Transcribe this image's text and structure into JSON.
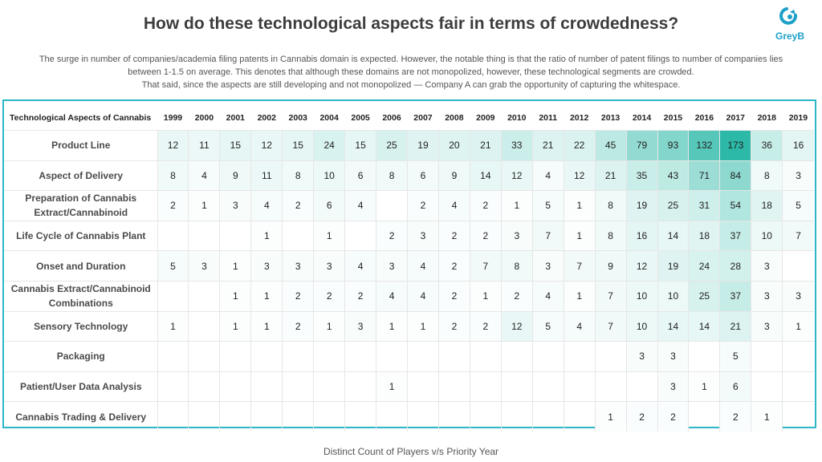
{
  "title": "How do these technological aspects fair in terms of crowdedness?",
  "logo": {
    "text": "GreyB",
    "icon": "greyb-logo-icon",
    "color": "#1ea1c9"
  },
  "subtitle_lines": [
    "The surge in number of companies/academia filing patents in Cannabis domain is expected. However, the notable thing is that the ratio of number of patent filings to number of companies lies",
    "between 1-1.5 on average. This denotes that although these domains are not monopolized, however, these technological segments are crowded.",
    "That said, since the aspects are still developing and not monopolized — Company A can grab the opportunity of capturing the whitespace."
  ],
  "caption": "Distinct Count of Players v/s Priority Year",
  "colors": {
    "border": "#2bb7c7",
    "heat_low": "#ffffff",
    "heat_high": "#2cb9a8"
  },
  "chart_data": {
    "type": "heatmap",
    "row_header": "Technological Aspects of Cannabis",
    "columns": [
      "1999",
      "2000",
      "2001",
      "2002",
      "2003",
      "2004",
      "2005",
      "2006",
      "2007",
      "2008",
      "2009",
      "2010",
      "2011",
      "2012",
      "2013",
      "2014",
      "2015",
      "2016",
      "2017",
      "2018",
      "2019"
    ],
    "rows": [
      {
        "label": "Product Line",
        "values": [
          12,
          11,
          15,
          12,
          15,
          24,
          15,
          25,
          19,
          20,
          21,
          33,
          21,
          22,
          45,
          79,
          93,
          132,
          173,
          36,
          16
        ]
      },
      {
        "label": "Aspect of Delivery",
        "values": [
          8,
          4,
          9,
          11,
          8,
          10,
          6,
          8,
          6,
          9,
          14,
          12,
          4,
          12,
          21,
          35,
          43,
          71,
          84,
          8,
          3
        ]
      },
      {
        "label": "Preparation of Cannabis Extract/Cannabinoid",
        "values": [
          2,
          1,
          3,
          4,
          2,
          6,
          4,
          null,
          2,
          4,
          2,
          1,
          5,
          1,
          8,
          19,
          25,
          31,
          54,
          18,
          5
        ]
      },
      {
        "label": "Life Cycle of Cannabis Plant",
        "values": [
          null,
          null,
          null,
          1,
          null,
          1,
          null,
          2,
          3,
          2,
          2,
          3,
          7,
          1,
          8,
          16,
          14,
          18,
          37,
          10,
          7
        ]
      },
      {
        "label": "Onset and Duration",
        "values": [
          5,
          3,
          1,
          3,
          3,
          3,
          4,
          3,
          4,
          2,
          7,
          8,
          3,
          7,
          9,
          12,
          19,
          24,
          28,
          3,
          null
        ]
      },
      {
        "label": "Cannabis Extract/Cannabinoid Combinations",
        "values": [
          null,
          null,
          1,
          1,
          2,
          2,
          2,
          4,
          4,
          2,
          1,
          2,
          4,
          1,
          7,
          10,
          10,
          25,
          37,
          3,
          3
        ]
      },
      {
        "label": "Sensory Technology",
        "values": [
          1,
          null,
          1,
          1,
          2,
          1,
          3,
          1,
          1,
          2,
          2,
          12,
          5,
          4,
          7,
          10,
          14,
          14,
          21,
          3,
          1
        ]
      },
      {
        "label": "Packaging",
        "values": [
          null,
          null,
          null,
          null,
          null,
          null,
          null,
          null,
          null,
          null,
          null,
          null,
          null,
          null,
          null,
          3,
          3,
          null,
          5,
          null,
          null
        ]
      },
      {
        "label": "Patient/User Data Analysis",
        "values": [
          null,
          null,
          null,
          null,
          null,
          null,
          null,
          1,
          null,
          null,
          null,
          null,
          null,
          null,
          null,
          null,
          3,
          1,
          6,
          null,
          null
        ]
      },
      {
        "label": "Cannabis Trading & Delivery",
        "values": [
          null,
          null,
          null,
          null,
          null,
          null,
          null,
          null,
          null,
          null,
          null,
          null,
          null,
          null,
          1,
          2,
          2,
          null,
          2,
          1,
          null
        ]
      }
    ]
  }
}
